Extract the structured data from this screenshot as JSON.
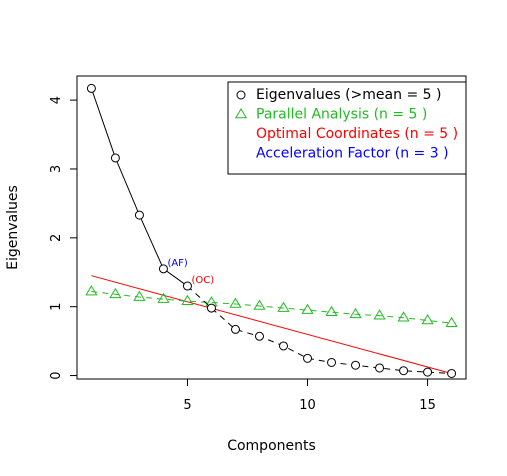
{
  "chart_data": {
    "type": "scatter",
    "title": "",
    "xlabel": "Components",
    "ylabel": "Eigenvalues",
    "xlim": [
      0.4,
      16.6
    ],
    "ylim": [
      -0.05,
      4.35
    ],
    "x_ticks": [
      5,
      10,
      15
    ],
    "y_ticks": [
      0,
      1,
      2,
      3,
      4
    ],
    "grid": false,
    "legend_position": "top-right",
    "series": [
      {
        "name": "Eigenvalues (>mean  =  5 )",
        "marker": "circle",
        "line": "solid-then-dashed",
        "color": "#000000",
        "x": [
          1,
          2,
          3,
          4,
          5,
          6,
          7,
          8,
          9,
          10,
          11,
          12,
          13,
          14,
          15,
          16
        ],
        "y": [
          4.17,
          3.16,
          2.33,
          1.55,
          1.3,
          0.98,
          0.67,
          0.57,
          0.43,
          0.25,
          0.19,
          0.15,
          0.11,
          0.07,
          0.05,
          0.03
        ]
      },
      {
        "name": "Parallel Analysis (n =  5 )",
        "marker": "triangle",
        "line": "dashed",
        "color": "#22bb22",
        "x": [
          1,
          2,
          3,
          4,
          5,
          6,
          7,
          8,
          9,
          10,
          11,
          12,
          13,
          14,
          15,
          16
        ],
        "y": [
          1.22,
          1.18,
          1.14,
          1.11,
          1.08,
          1.06,
          1.04,
          1.01,
          0.98,
          0.95,
          0.92,
          0.89,
          0.87,
          0.84,
          0.8,
          0.76
        ]
      },
      {
        "name": "Optimal Coordinates (n =  5 )",
        "marker": "none",
        "line": "solid",
        "color": "#ff0000",
        "x": [
          1,
          16
        ],
        "y": [
          1.45,
          0.03
        ]
      },
      {
        "name": "Acceleration Factor (n =  3 )",
        "marker": "none",
        "line": "none",
        "color": "#0000ff",
        "x": [],
        "y": []
      }
    ],
    "annotations": [
      {
        "text": "(AF)",
        "x": 4,
        "y": 1.55,
        "color": "#0000ff"
      },
      {
        "text": "(OC)",
        "x": 5,
        "y": 1.3,
        "color": "#ff0000"
      }
    ]
  }
}
